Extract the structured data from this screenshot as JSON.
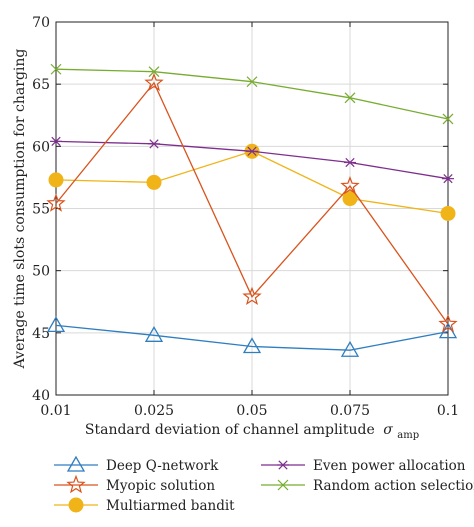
{
  "chart_data": {
    "type": "line",
    "title": "",
    "xlabel": "Standard deviation of channel amplitude",
    "xlabel_symbol": "σ",
    "xlabel_subscript": "amp",
    "ylabel": "Average time slots consumption for charging",
    "categories": [
      "0.01",
      "0.025",
      "0.05",
      "0.075",
      "0.1"
    ],
    "ylim": [
      40,
      70
    ],
    "yticks": [
      40,
      45,
      50,
      55,
      60,
      65,
      70
    ],
    "grid": true,
    "legend_position": "bottom",
    "series": [
      {
        "name": "Deep Q-network",
        "color": "#2e7ec0",
        "marker": "triangle",
        "values": [
          45.6,
          44.8,
          43.9,
          43.6,
          45.1
        ]
      },
      {
        "name": "Myopic solution",
        "color": "#d9531e",
        "marker": "star",
        "values": [
          55.4,
          65.1,
          47.9,
          56.8,
          45.7
        ]
      },
      {
        "name": "Multiarmed bandit",
        "color": "#f0b418",
        "marker": "circle",
        "values": [
          57.3,
          57.1,
          59.6,
          55.8,
          54.6
        ]
      },
      {
        "name": "Even power allocation",
        "color": "#7e2f8e",
        "marker": "asterisk",
        "values": [
          60.4,
          60.2,
          59.6,
          58.7,
          57.4
        ]
      },
      {
        "name": "Random action selection",
        "color": "#77ac30",
        "marker": "x",
        "values": [
          66.2,
          66.0,
          65.2,
          63.9,
          62.2
        ]
      }
    ]
  }
}
